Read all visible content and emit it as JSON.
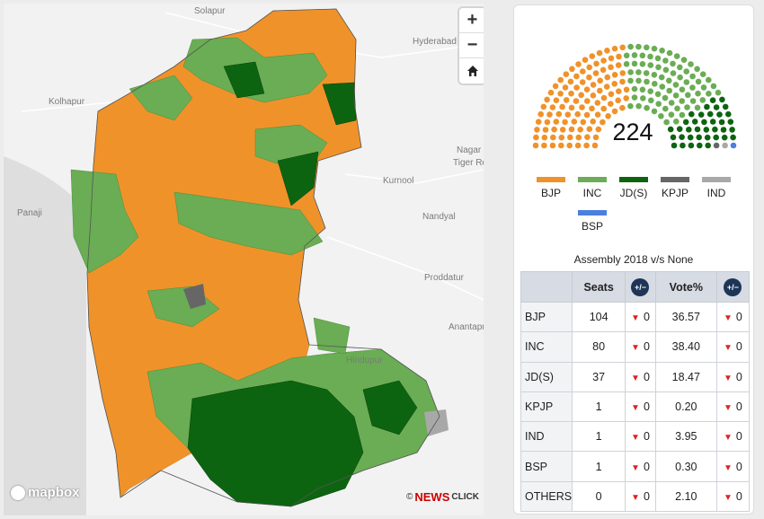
{
  "map": {
    "cities": [
      "Solapur",
      "Hyderabad",
      "Kolhapur",
      "Panaji",
      "Kurnool",
      "Nandyal",
      "Proddatur",
      "Anantapur",
      "Tiger Res",
      "Nagar",
      "Hindupur"
    ],
    "zoom_in": "+",
    "zoom_out": "−",
    "home_icon": "home-icon",
    "attribution": "mapbox",
    "watermark_prefix": "©",
    "watermark_brand": "NEWS",
    "watermark_suffix": "CLICK"
  },
  "colors": {
    "BJP": "#f0922a",
    "INC": "#6aad54",
    "JD(S)": "#0d6410",
    "KPJP": "#666666",
    "IND": "#a8a8a8",
    "BSP": "#4a7fe0"
  },
  "summary": {
    "total_seats": "224",
    "legend": [
      "BJP",
      "INC",
      "JD(S)",
      "KPJP",
      "IND",
      "BSP"
    ],
    "caption": "Assembly 2018 v/s None"
  },
  "table": {
    "headers": [
      "",
      "Seats",
      "+/−",
      "Vote%",
      "+/−"
    ],
    "rows": [
      {
        "party": "BJP",
        "seats": "104",
        "seats_change": "0",
        "vote": "36.57",
        "vote_change": "0"
      },
      {
        "party": "INC",
        "seats": "80",
        "seats_change": "0",
        "vote": "38.40",
        "vote_change": "0"
      },
      {
        "party": "JD(S)",
        "seats": "37",
        "seats_change": "0",
        "vote": "18.47",
        "vote_change": "0"
      },
      {
        "party": "KPJP",
        "seats": "1",
        "seats_change": "0",
        "vote": "0.20",
        "vote_change": "0"
      },
      {
        "party": "IND",
        "seats": "1",
        "seats_change": "0",
        "vote": "3.95",
        "vote_change": "0"
      },
      {
        "party": "BSP",
        "seats": "1",
        "seats_change": "0",
        "vote": "0.30",
        "vote_change": "0"
      },
      {
        "party": "OTHERS",
        "seats": "0",
        "seats_change": "0",
        "vote": "2.10",
        "vote_change": "0"
      }
    ]
  }
}
